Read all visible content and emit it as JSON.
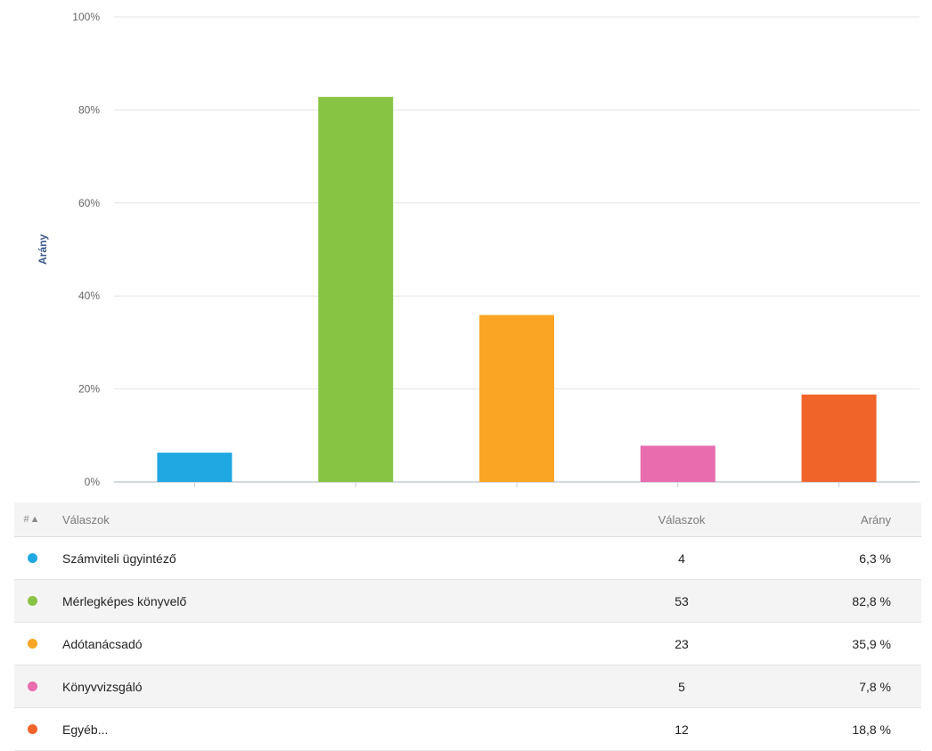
{
  "chart_data": {
    "type": "bar",
    "categories": [
      "Számviteli ügyintéző",
      "Mérlegképes könyvelő",
      "Adótanácsadó",
      "Könyvvizsgáló",
      "Egyéb..."
    ],
    "values": [
      6.3,
      82.8,
      35.9,
      7.8,
      18.8
    ],
    "colors": [
      "#1fa8e1",
      "#88c443",
      "#fba524",
      "#e86cae",
      "#f0642a"
    ],
    "ylabel": "Arány",
    "xlabel": "",
    "ylim": [
      0,
      100
    ],
    "yticks": [
      "0%",
      "20%",
      "40%",
      "60%",
      "80%",
      "100%"
    ],
    "grid": true
  },
  "table": {
    "header": {
      "sort": "#▲",
      "answers": "Válaszok",
      "count": "Válaszok",
      "ratio": "Arány"
    },
    "rows": [
      {
        "label": "Számviteli ügyintéző",
        "count": "4",
        "ratio": "6,3 %",
        "color": "#1fa8e1"
      },
      {
        "label": "Mérlegképes könyvelő",
        "count": "53",
        "ratio": "82,8 %",
        "color": "#88c443"
      },
      {
        "label": "Adótanácsadó",
        "count": "23",
        "ratio": "35,9 %",
        "color": "#fba524"
      },
      {
        "label": "Könyvvizsgáló",
        "count": "5",
        "ratio": "7,8 %",
        "color": "#e86cae"
      },
      {
        "label": "Egyéb...",
        "count": "12",
        "ratio": "18,8 %",
        "color": "#f0642a"
      }
    ]
  }
}
